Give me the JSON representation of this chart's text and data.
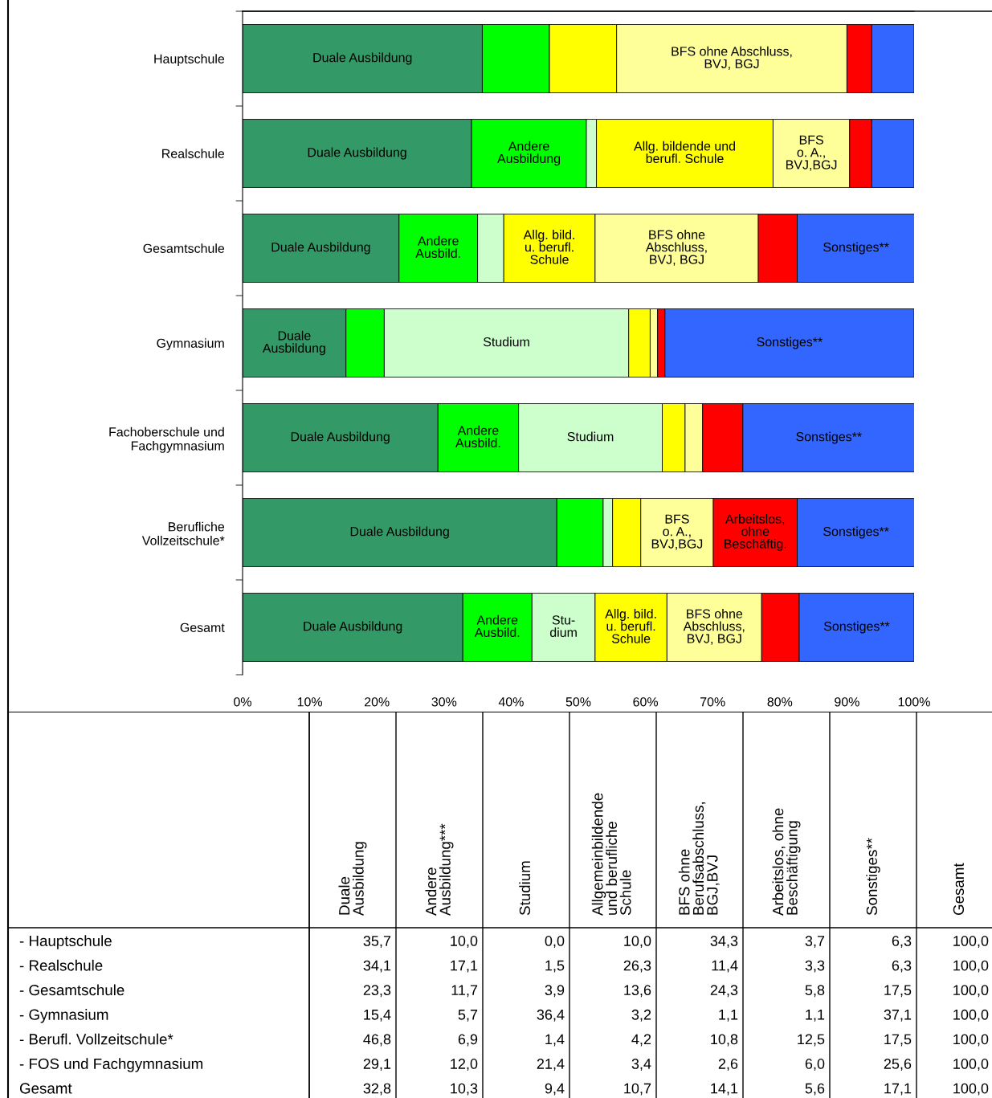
{
  "chart_data": [
    {
      "type": "bar",
      "orientation": "horizontal",
      "stacked": true,
      "categories": [
        "Hauptschule",
        "Realschule",
        "Gesamtschule",
        "Gymnasium",
        "Fachoberschule und\nFachgymnasium",
        "Berufliche\nVollzeitschule*",
        "Gesamt"
      ],
      "series": [
        {
          "color": "#339966",
          "values": [
            35.7,
            34.1,
            23.3,
            15.4,
            29.1,
            46.8,
            32.8
          ],
          "value_labels": [
            "Duale Ausbildung",
            "Duale Ausbildung",
            "Duale Ausbildung",
            "Duale\nAusbildung",
            "Duale Ausbildung",
            "Duale Ausbildung",
            "Duale Ausbildung"
          ]
        },
        {
          "color": "#00ff00",
          "values": [
            10.0,
            17.1,
            11.7,
            5.7,
            12.0,
            6.9,
            10.3
          ],
          "value_labels": [
            null,
            "Andere\nAusbildung",
            "Andere\nAusbild.",
            null,
            "Andere\nAusbild.",
            null,
            "Andere\nAusbild."
          ]
        },
        {
          "color": "#ccffcc",
          "values": [
            0.0,
            1.5,
            3.9,
            36.4,
            21.4,
            1.4,
            9.4
          ],
          "value_labels": [
            null,
            null,
            null,
            "Studium",
            "Studium",
            null,
            "Stu-\ndium"
          ]
        },
        {
          "color": "#ffff00",
          "values": [
            10.0,
            26.3,
            13.6,
            3.2,
            3.4,
            4.2,
            10.7
          ],
          "value_labels": [
            null,
            "Allg. bildende und\nberufl. Schule",
            "Allg. bild.\nu. berufl.\nSchule",
            null,
            null,
            null,
            "Allg. bild.\nu. berufl.\nSchule"
          ]
        },
        {
          "color": "#ffff99",
          "values": [
            34.3,
            11.4,
            24.3,
            1.1,
            2.6,
            10.8,
            14.1
          ],
          "value_labels": [
            "BFS ohne Abschluss,\nBVJ, BGJ",
            "BFS\no. A.,\nBVJ,BGJ",
            "BFS ohne\nAbschluss,\nBVJ, BGJ",
            null,
            null,
            "BFS\no. A.,\nBVJ,BGJ",
            "BFS ohne\nAbschluss,\nBVJ, BGJ"
          ]
        },
        {
          "color": "#ff0000",
          "values": [
            3.7,
            3.3,
            5.8,
            1.1,
            6.0,
            12.5,
            5.6
          ],
          "value_labels": [
            null,
            null,
            null,
            null,
            null,
            "Arbeitslos,\nohne\nBeschäftig.",
            null
          ]
        },
        {
          "color": "#3366ff",
          "values": [
            6.3,
            6.3,
            17.5,
            37.1,
            25.6,
            17.5,
            17.1
          ],
          "value_labels": [
            null,
            null,
            "Sonstiges**",
            "Sonstiges**",
            "Sonstiges**",
            "Sonstiges**",
            "Sonstiges**"
          ]
        }
      ],
      "xlim": [
        0,
        100
      ],
      "xticks": [
        {
          "value": 0,
          "label": "0%"
        },
        {
          "value": 10,
          "label": "10%"
        },
        {
          "value": 20,
          "label": "20%"
        },
        {
          "value": 30,
          "label": "30%"
        },
        {
          "value": 40,
          "label": "40%"
        },
        {
          "value": 50,
          "label": "50%"
        },
        {
          "value": 60,
          "label": "60%"
        },
        {
          "value": 70,
          "label": "70%"
        },
        {
          "value": 80,
          "label": "80%"
        },
        {
          "value": 90,
          "label": "90%"
        },
        {
          "value": 100,
          "label": "100%"
        }
      ]
    },
    {
      "type": "other",
      "categories": [
        "Duale\nAusbildung",
        "Andere\nAusbildung***",
        "Studium",
        "Allgemeinbildende\nund berufliche\nSchule",
        "BFS ohne\nBerufsabschluss,\nBGJ,BVJ",
        "Arbeitslos, ohne\nBeschäftigung",
        "Sonstiges**",
        "Gesamt"
      ],
      "y_categories": [
        "- Hauptschule",
        "- Realschule",
        "- Gesamtschule",
        "- Gymnasium",
        "- Berufl. Vollzeitschule*",
        "- FOS und Fachgymnasium",
        "Gesamt"
      ],
      "cell_labels": [
        [
          "35,7",
          "10,0",
          "0,0",
          "10,0",
          "34,3",
          "3,7",
          "6,3",
          "100,0"
        ],
        [
          "34,1",
          "17,1",
          "1,5",
          "26,3",
          "11,4",
          "3,3",
          "6,3",
          "100,0"
        ],
        [
          "23,3",
          "11,7",
          "3,9",
          "13,6",
          "24,3",
          "5,8",
          "17,5",
          "100,0"
        ],
        [
          "15,4",
          "5,7",
          "36,4",
          "3,2",
          "1,1",
          "1,1",
          "37,1",
          "100,0"
        ],
        [
          "46,8",
          "6,9",
          "1,4",
          "4,2",
          "10,8",
          "12,5",
          "17,5",
          "100,0"
        ],
        [
          "29,1",
          "12,0",
          "21,4",
          "3,4",
          "2,6",
          "6,0",
          "25,6",
          "100,0"
        ],
        [
          "32,8",
          "10,3",
          "9,4",
          "10,7",
          "14,1",
          "5,6",
          "17,1",
          "100,0"
        ]
      ]
    }
  ]
}
